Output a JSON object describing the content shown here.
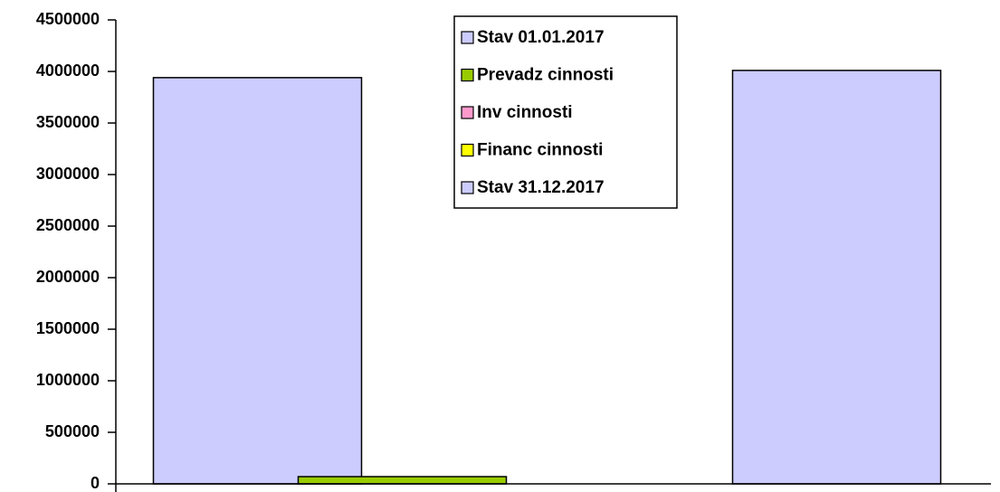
{
  "chart_data": {
    "type": "bar",
    "categories": [
      null
    ],
    "series": [
      {
        "name": "Stav 01.01.2017",
        "color": "#ccccff",
        "values": [
          3940000
        ]
      },
      {
        "name": "Prevadz cinnosti",
        "color": "#99cc00",
        "values": [
          70000
        ]
      },
      {
        "name": "Inv cinnosti",
        "color": "#ff99cc",
        "values": [
          0
        ]
      },
      {
        "name": "Financ cinnosti",
        "color": "#ffff00",
        "values": [
          0
        ]
      },
      {
        "name": "Stav 31.12.2017",
        "color": "#ccccff",
        "values": [
          4010000
        ]
      }
    ],
    "ylim": [
      0,
      4500000
    ],
    "yticks": [
      0,
      500000,
      1000000,
      1500000,
      2000000,
      2500000,
      3000000,
      3500000,
      4000000,
      4500000
    ],
    "legend": "top"
  }
}
